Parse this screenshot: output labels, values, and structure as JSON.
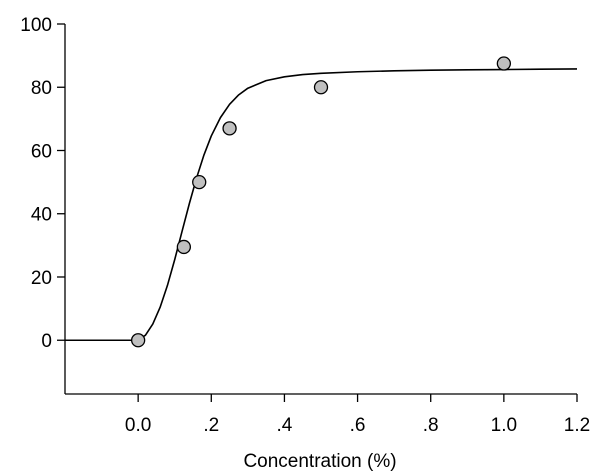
{
  "chart_data": {
    "type": "scatter",
    "title": "",
    "xlabel": "Concentration (%)",
    "ylabel": "",
    "xlim": [
      -0.2,
      1.2
    ],
    "ylim": [
      -17,
      100
    ],
    "x_ticks": [
      {
        "value": 0.0,
        "label": "0.0"
      },
      {
        "value": 0.2,
        "label": ".2"
      },
      {
        "value": 0.4,
        "label": ".4"
      },
      {
        "value": 0.6,
        "label": ".6"
      },
      {
        "value": 0.8,
        "label": ".8"
      },
      {
        "value": 1.0,
        "label": "1.0"
      },
      {
        "value": 1.2,
        "label": "1.2"
      }
    ],
    "y_ticks": [
      {
        "value": 0,
        "label": "0"
      },
      {
        "value": 20,
        "label": "20"
      },
      {
        "value": 40,
        "label": "40"
      },
      {
        "value": 60,
        "label": "60"
      },
      {
        "value": 80,
        "label": "80"
      },
      {
        "value": 100,
        "label": "100"
      }
    ],
    "grid": false,
    "legend": "none",
    "series": [
      {
        "type": "scatter",
        "x": [
          0.0,
          0.125,
          0.167,
          0.25,
          0.5,
          1.0
        ],
        "y": [
          0,
          29.5,
          50,
          67,
          80,
          87.5
        ],
        "marker_fill": "#c0c0c0",
        "marker_edge": "#000000"
      },
      {
        "type": "line",
        "x": [
          -0.2,
          -0.15,
          -0.1,
          -0.05,
          0.0,
          0.02,
          0.04,
          0.06,
          0.08,
          0.1,
          0.12,
          0.14,
          0.16,
          0.18,
          0.2,
          0.225,
          0.25,
          0.275,
          0.3,
          0.35,
          0.4,
          0.45,
          0.5,
          0.6,
          0.7,
          0.8,
          0.9,
          1.0,
          1.1,
          1.2
        ],
        "y": [
          0,
          0,
          0,
          0,
          0,
          1.6,
          5.1,
          10.4,
          17.3,
          25.5,
          34.4,
          43.2,
          51.4,
          58.6,
          64.6,
          70.4,
          74.6,
          77.6,
          79.7,
          82.1,
          83.3,
          84.0,
          84.4,
          84.9,
          85.2,
          85.4,
          85.5,
          85.6,
          85.7,
          85.8
        ],
        "color": "#000000"
      }
    ]
  }
}
